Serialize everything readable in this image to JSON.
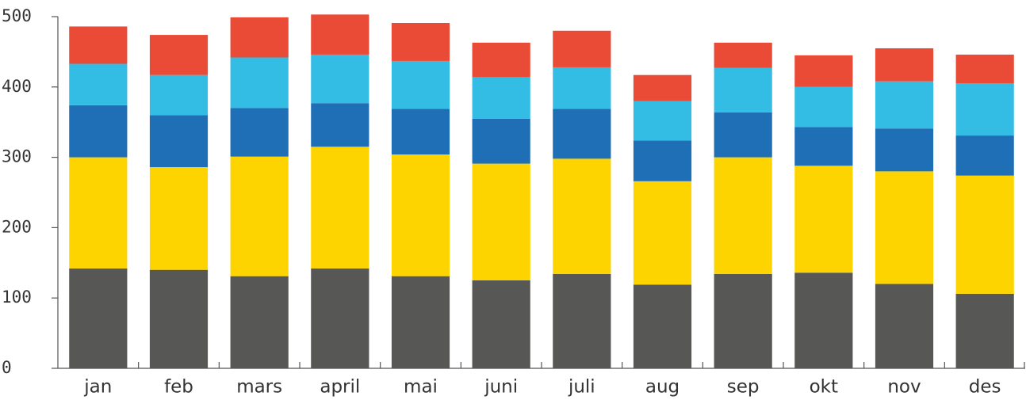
{
  "chart_data": {
    "type": "bar",
    "stacked": true,
    "categories": [
      "jan",
      "feb",
      "mars",
      "april",
      "mai",
      "juni",
      "juli",
      "aug",
      "sep",
      "okt",
      "nov",
      "des"
    ],
    "series": [
      {
        "color": "#575756",
        "values": [
          142,
          140,
          131,
          142,
          131,
          125,
          134,
          119,
          134,
          136,
          120,
          106
        ]
      },
      {
        "color": "#fdd400",
        "values": [
          158,
          146,
          170,
          173,
          173,
          166,
          164,
          147,
          166,
          152,
          160,
          168
        ]
      },
      {
        "color": "#1f6fb6",
        "values": [
          74,
          74,
          69,
          62,
          65,
          64,
          71,
          58,
          64,
          55,
          61,
          57
        ]
      },
      {
        "color": "#33bce4",
        "values": [
          59,
          57,
          72,
          69,
          68,
          59,
          59,
          56,
          63,
          57,
          67,
          74
        ]
      },
      {
        "color": "#e94b36",
        "values": [
          53,
          57,
          57,
          57,
          54,
          49,
          52,
          37,
          36,
          45,
          47,
          41
        ]
      }
    ],
    "ylim": [
      0,
      500
    ],
    "yticks": [
      0,
      100,
      200,
      300,
      400,
      500
    ]
  }
}
